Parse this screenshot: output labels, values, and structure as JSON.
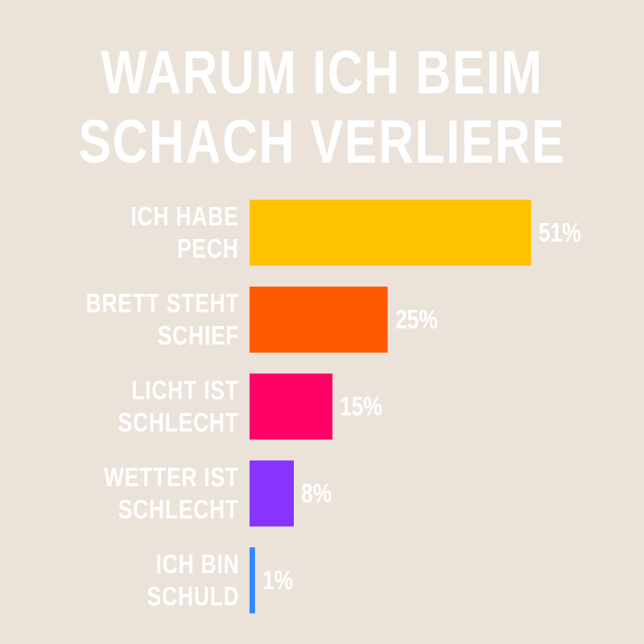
{
  "chart_data": {
    "type": "bar",
    "orientation": "horizontal",
    "title": "WARUM ICH BEIM\nSCHACH VERLIERE",
    "categories": [
      "ICH HABE\nPECH",
      "BRETT STEHT\nSCHIEF",
      "LICHT IST\nSCHLECHT",
      "WETTER IST\nSCHLECHT",
      "ICH BIN\nSCHULD"
    ],
    "values": [
      51,
      25,
      15,
      8,
      1
    ],
    "value_labels": [
      "51%",
      "25%",
      "15%",
      "8%",
      "1%"
    ],
    "colors": [
      "#ffc200",
      "#ff5a00",
      "#ff0066",
      "#8833ff",
      "#3388ff"
    ]
  }
}
